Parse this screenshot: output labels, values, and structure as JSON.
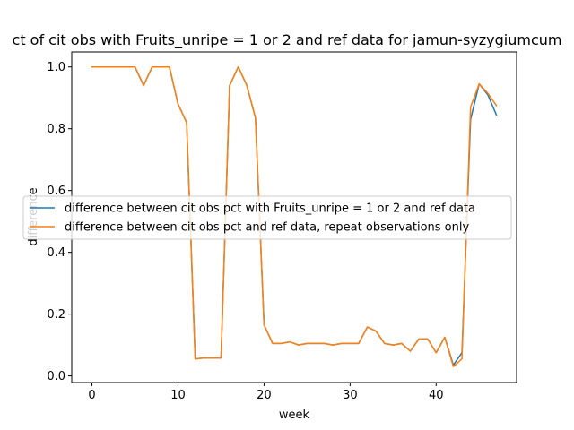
{
  "chart_data": {
    "type": "line",
    "title": "ct of cit obs with Fruits_unripe = 1 or 2 and ref data for jamun-syzygiumcum",
    "xlabel": "week",
    "ylabel": "difference",
    "xlim": [
      -2.35,
      49.35
    ],
    "ylim": [
      -0.0215,
      1.0485
    ],
    "xticks": [
      0,
      10,
      20,
      30,
      40
    ],
    "yticks": [
      0.0,
      0.2,
      0.4,
      0.6,
      0.8,
      1.0
    ],
    "xtick_labels": [
      "0",
      "10",
      "20",
      "30",
      "40"
    ],
    "ytick_labels": [
      "0.0",
      "0.2",
      "0.4",
      "0.6",
      "0.8",
      "1.0"
    ],
    "legend_position": "center-left",
    "grid": false,
    "series": [
      {
        "name": "difference between cit obs pct with Fruits_unripe = 1 or 2 and ref data",
        "color": "#1f77b4",
        "x": [
          0,
          1,
          2,
          3,
          4,
          5,
          6,
          7,
          8,
          9,
          10,
          11,
          12,
          13,
          14,
          15,
          16,
          17,
          18,
          19,
          20,
          21,
          22,
          23,
          24,
          25,
          26,
          27,
          28,
          29,
          30,
          31,
          32,
          33,
          34,
          35,
          36,
          37,
          38,
          39,
          40,
          41,
          42,
          43,
          44,
          45,
          46,
          47
        ],
        "y": [
          1.0,
          1.0,
          1.0,
          1.0,
          1.0,
          1.0,
          0.94,
          1.0,
          1.0,
          1.0,
          0.88,
          0.82,
          0.055,
          0.058,
          0.058,
          0.058,
          0.94,
          1.0,
          0.94,
          0.835,
          0.165,
          0.105,
          0.105,
          0.11,
          0.1,
          0.105,
          0.105,
          0.105,
          0.1,
          0.105,
          0.105,
          0.105,
          0.158,
          0.145,
          0.105,
          0.1,
          0.105,
          0.08,
          0.12,
          0.12,
          0.075,
          0.125,
          0.035,
          0.075,
          0.83,
          0.945,
          0.91,
          0.845
        ]
      },
      {
        "name": "difference between cit obs pct and ref data, repeat observations only",
        "color": "#ff7f0e",
        "x": [
          0,
          1,
          2,
          3,
          4,
          5,
          6,
          7,
          8,
          9,
          10,
          11,
          12,
          13,
          14,
          15,
          16,
          17,
          18,
          19,
          20,
          21,
          22,
          23,
          24,
          25,
          26,
          27,
          28,
          29,
          30,
          31,
          32,
          33,
          34,
          35,
          36,
          37,
          38,
          39,
          40,
          41,
          42,
          43,
          44,
          45,
          46,
          47
        ],
        "y": [
          1.0,
          1.0,
          1.0,
          1.0,
          1.0,
          1.0,
          0.94,
          1.0,
          1.0,
          1.0,
          0.88,
          0.82,
          0.055,
          0.058,
          0.058,
          0.058,
          0.94,
          1.0,
          0.94,
          0.835,
          0.165,
          0.105,
          0.105,
          0.11,
          0.1,
          0.105,
          0.105,
          0.105,
          0.1,
          0.105,
          0.105,
          0.105,
          0.158,
          0.145,
          0.105,
          0.1,
          0.105,
          0.08,
          0.12,
          0.12,
          0.075,
          0.125,
          0.03,
          0.055,
          0.87,
          0.945,
          0.915,
          0.875
        ]
      }
    ]
  }
}
